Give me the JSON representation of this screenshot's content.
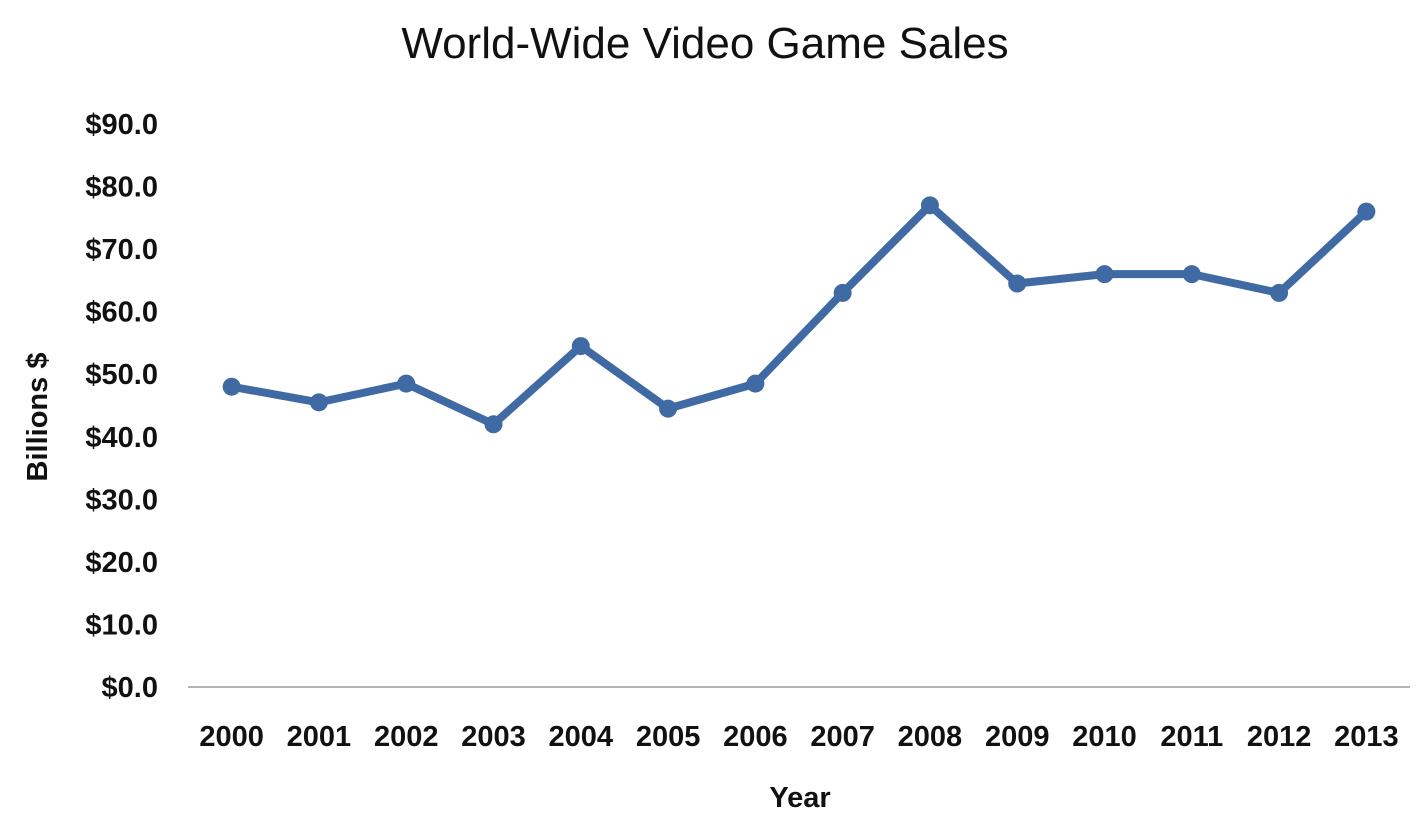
{
  "chart_data": {
    "type": "line",
    "title": "World-Wide Video Game Sales",
    "xlabel": "Year",
    "ylabel": "Billions $",
    "categories": [
      "2000",
      "2001",
      "2002",
      "2003",
      "2004",
      "2005",
      "2006",
      "2007",
      "2008",
      "2009",
      "2010",
      "2011",
      "2012",
      "2013"
    ],
    "series": [
      {
        "values": [
          48.0,
          45.5,
          48.5,
          42.0,
          54.5,
          44.5,
          48.5,
          63.0,
          77.0,
          64.5,
          66.0,
          66.0,
          63.0,
          76.0
        ]
      }
    ],
    "ylim": [
      0,
      90
    ],
    "yticks": [
      0,
      10,
      20,
      30,
      40,
      50,
      60,
      70,
      80,
      90
    ],
    "ytick_labels": [
      "$0.0",
      "$10.0",
      "$20.0",
      "$30.0",
      "$40.0",
      "$50.0",
      "$60.0",
      "$70.0",
      "$80.0",
      "$90.0"
    ],
    "grid": false,
    "legend": "none",
    "colors": {
      "series": "#3f6aa3",
      "axis": "#b3b3b3",
      "text": "#111111"
    }
  }
}
